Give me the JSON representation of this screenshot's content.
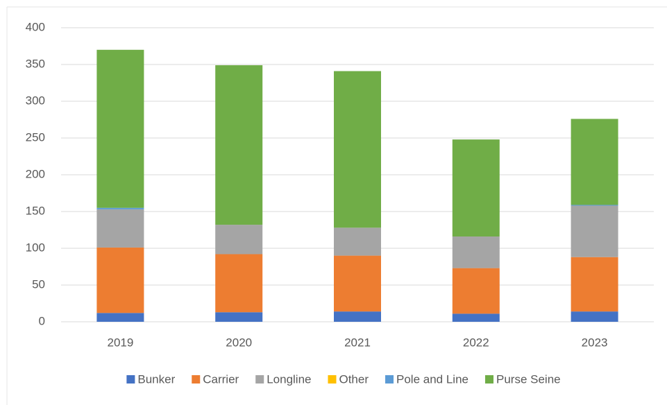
{
  "chart_data": {
    "type": "stacked_bar",
    "categories": [
      "2019",
      "2020",
      "2021",
      "2022",
      "2023"
    ],
    "series": [
      {
        "name": "Bunker",
        "color": "#4472c4",
        "values": [
          12,
          13,
          14,
          11,
          14
        ]
      },
      {
        "name": "Carrier",
        "color": "#ed7d31",
        "values": [
          89,
          79,
          76,
          62,
          74
        ]
      },
      {
        "name": "Longline",
        "color": "#a5a5a5",
        "values": [
          52,
          40,
          38,
          43,
          70
        ]
      },
      {
        "name": "Other",
        "color": "#ffc000",
        "values": [
          0,
          0,
          0,
          0,
          0
        ]
      },
      {
        "name": "Pole and Line",
        "color": "#5b9bd5",
        "values": [
          2,
          0,
          0,
          0,
          1
        ]
      },
      {
        "name": "Purse Seine",
        "color": "#70ad47",
        "values": [
          215,
          217,
          213,
          132,
          117
        ]
      }
    ],
    "ylim": [
      0,
      400
    ],
    "yticks": [
      0,
      50,
      100,
      150,
      200,
      250,
      300,
      350,
      400
    ],
    "grid": true,
    "legend": "bottom"
  }
}
